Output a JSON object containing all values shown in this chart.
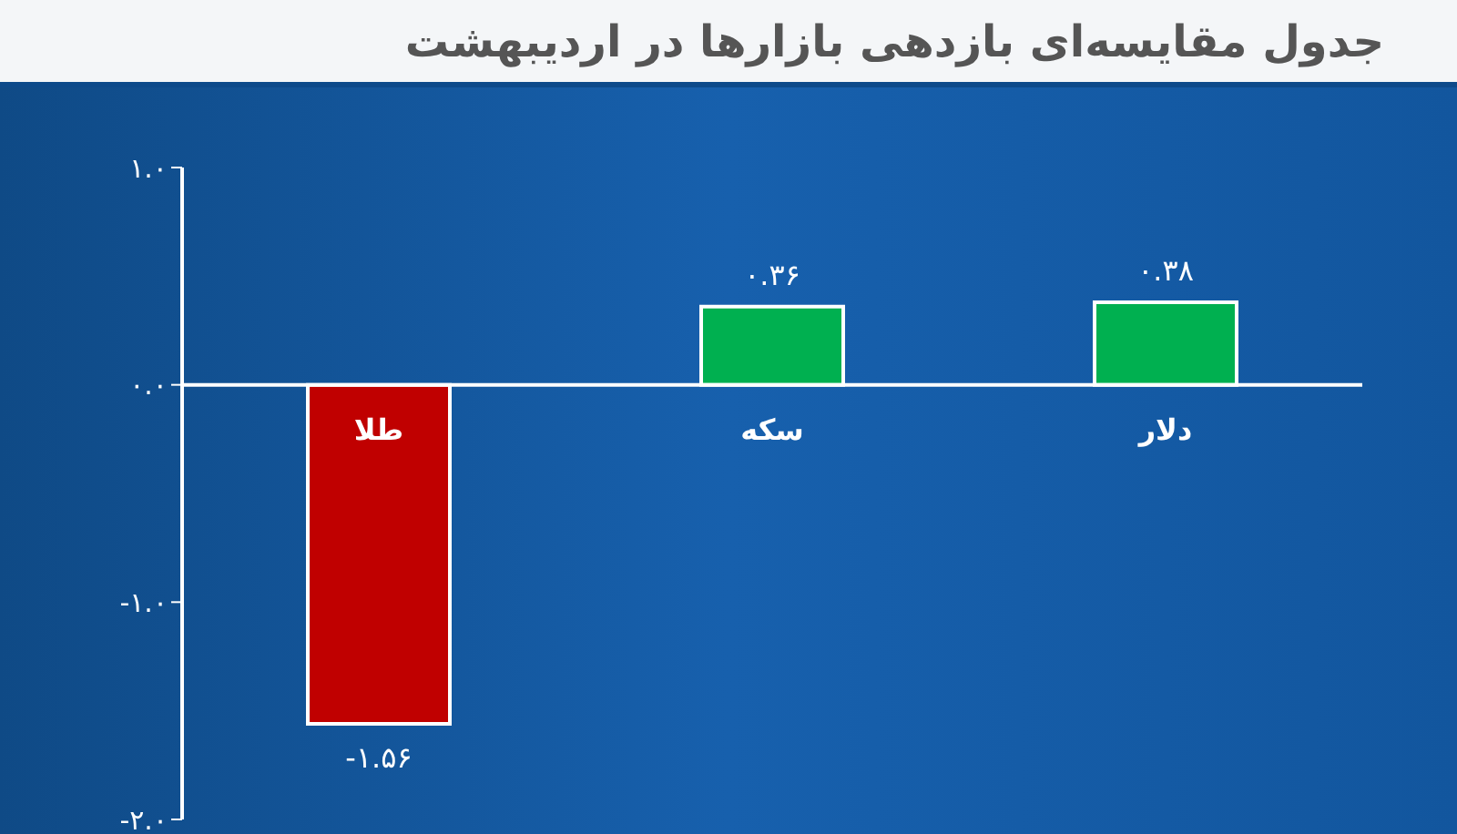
{
  "chart_data": {
    "type": "bar",
    "title": "جدول مقایسه‌ای بازدهی بازارها در اردیبهشت",
    "categories": [
      "طلا",
      "سکه",
      "دلار"
    ],
    "values": [
      -1.56,
      0.36,
      0.38
    ],
    "colors": [
      "#c00000",
      "#00b050",
      "#00b050"
    ],
    "value_labels": [
      "-۱.۵۶",
      "۰.۳۶",
      "۰.۳۸"
    ],
    "ylim": [
      -2,
      1
    ],
    "yticks": [
      {
        "value": 1,
        "label": "۱.۰"
      },
      {
        "value": 0,
        "label": "۰.۰"
      },
      {
        "value": -1,
        "label": "-۱.۰"
      },
      {
        "value": -2,
        "label": "-۲.۰"
      }
    ],
    "tick_labels": "y"
  }
}
